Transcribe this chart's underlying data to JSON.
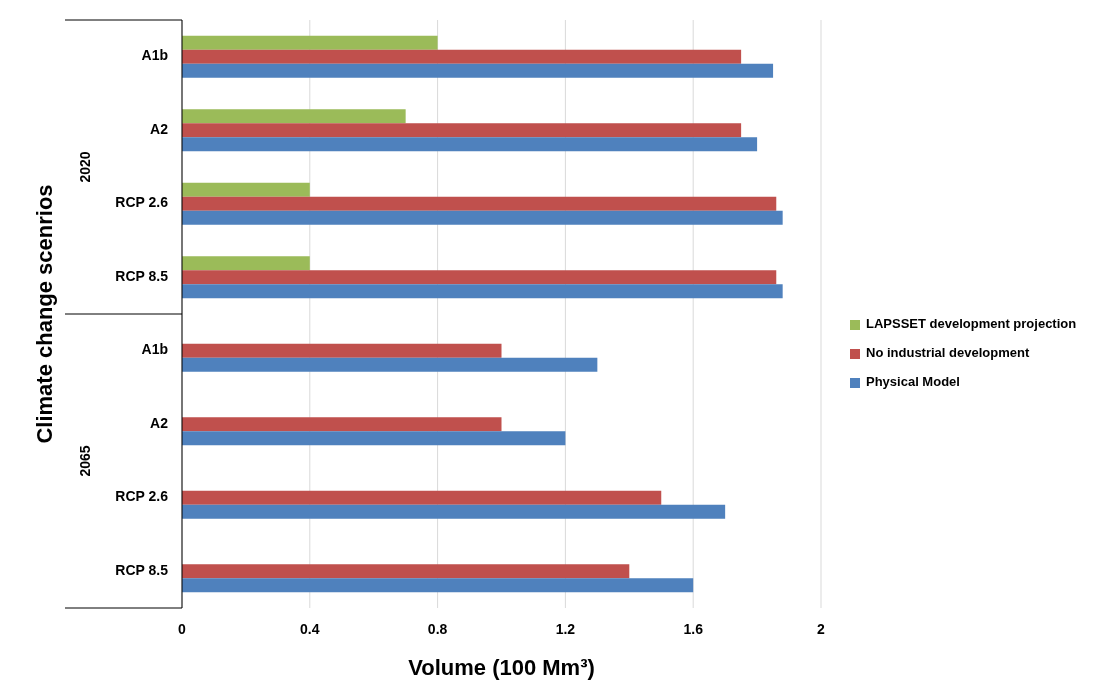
{
  "chart_data": {
    "type": "bar",
    "orientation": "horizontal",
    "ylabel": "Climate change scenrios",
    "xlabel": "Volume (100 Mm³)",
    "categories": [
      "A1b",
      "A2",
      "RCP 2.6",
      "RCP 8.5",
      "A1b",
      "A2",
      "RCP 2.6",
      "RCP 8.5"
    ],
    "annotations": [
      "2020",
      "2065"
    ],
    "series": [
      {
        "name": "LAPSSET development projection",
        "color": "#9bbb59",
        "values": [
          0.8,
          0.7,
          0.4,
          0.4,
          null,
          null,
          null,
          null
        ]
      },
      {
        "name": "No industrial development",
        "color": "#c0504d",
        "values": [
          1.75,
          1.75,
          1.86,
          1.86,
          1.0,
          1.0,
          1.5,
          1.4
        ]
      },
      {
        "name": "Physical Model",
        "color": "#4f81bd",
        "values": [
          1.85,
          1.8,
          1.88,
          1.88,
          1.3,
          1.2,
          1.7,
          1.6
        ]
      }
    ],
    "xlim": [
      0,
      2
    ],
    "xticks": [
      0,
      0.4,
      0.8,
      1.2,
      1.6,
      2
    ],
    "grid": "x",
    "legend": "right"
  }
}
